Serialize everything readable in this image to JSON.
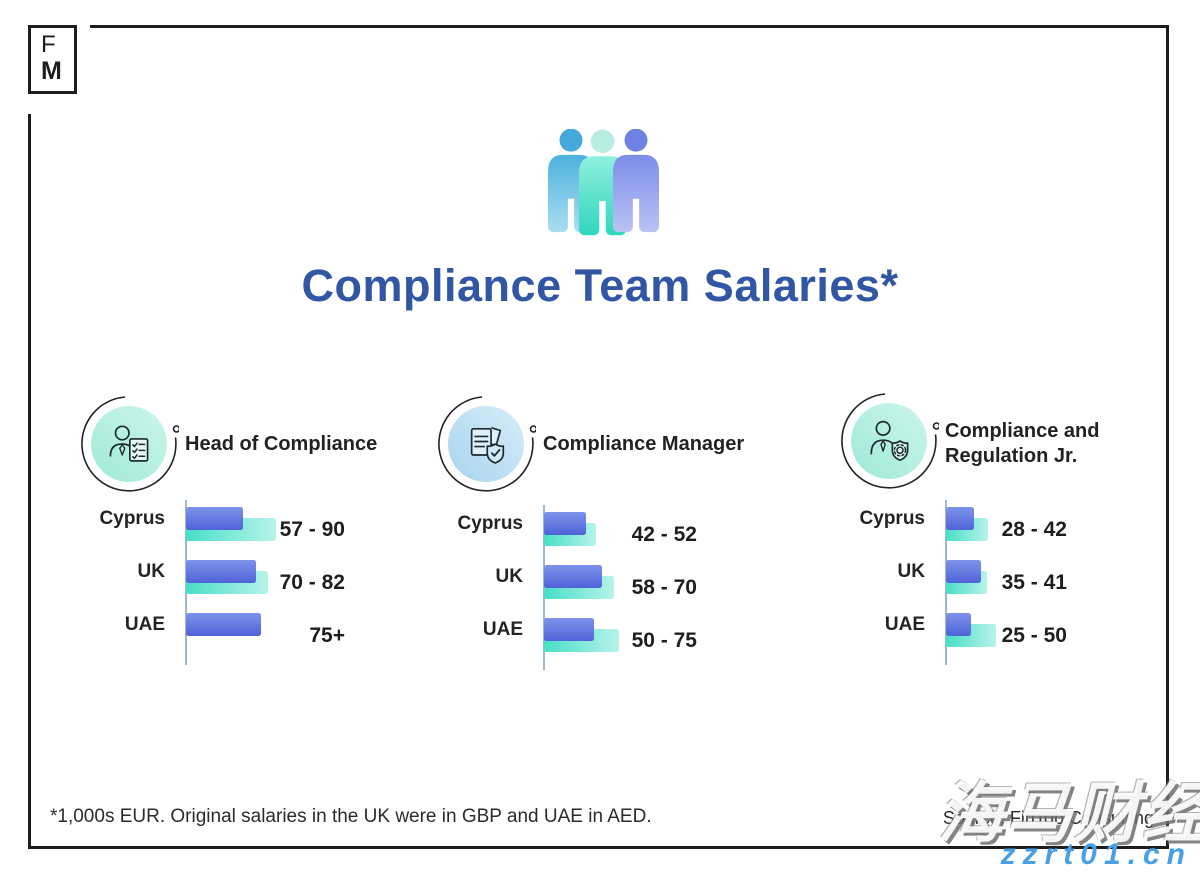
{
  "logo": {
    "top": "F",
    "bottom": "M"
  },
  "header": {
    "title": "Compliance Team Salaries*",
    "icon": "people-group-icon"
  },
  "sections": [
    {
      "icon": "person-checklist-icon",
      "label_lines": [
        "Head of Compliance"
      ]
    },
    {
      "icon": "documents-shield-icon",
      "label_lines": [
        "Compliance Manager"
      ]
    },
    {
      "icon": "person-shield-gear-icon",
      "label_lines": [
        "Compliance and",
        "Regulation Jr."
      ]
    }
  ],
  "chart_data": [
    {
      "type": "bar",
      "orientation": "horizontal",
      "title": "Head of Compliance",
      "categories": [
        "Cyprus",
        "UK",
        "UAE"
      ],
      "series": [
        {
          "name": "salary_min",
          "values": [
            57,
            70,
            75
          ]
        },
        {
          "name": "salary_max",
          "values": [
            90,
            82,
            null
          ]
        }
      ],
      "range_labels": [
        "57 - 90",
        "70 - 82",
        "75+"
      ],
      "unit": "1,000s EUR",
      "xlim": [
        0,
        100
      ],
      "grid": false,
      "legend": false
    },
    {
      "type": "bar",
      "orientation": "horizontal",
      "title": "Compliance Manager",
      "categories": [
        "Cyprus",
        "UK",
        "UAE"
      ],
      "series": [
        {
          "name": "salary_min",
          "values": [
            42,
            58,
            50
          ]
        },
        {
          "name": "salary_max",
          "values": [
            52,
            70,
            75
          ]
        }
      ],
      "range_labels": [
        "42 - 52",
        "58 - 70",
        "50 - 75"
      ],
      "unit": "1,000s EUR",
      "xlim": [
        0,
        100
      ],
      "grid": false,
      "legend": false
    },
    {
      "type": "bar",
      "orientation": "horizontal",
      "title": "Compliance and Regulation Jr.",
      "categories": [
        "Cyprus",
        "UK",
        "UAE"
      ],
      "series": [
        {
          "name": "salary_min",
          "values": [
            28,
            35,
            25
          ]
        },
        {
          "name": "salary_max",
          "values": [
            42,
            41,
            50
          ]
        }
      ],
      "range_labels": [
        "28 - 42",
        "35 - 41",
        "25 - 50"
      ],
      "unit": "1,000s EUR",
      "xlim": [
        0,
        100
      ],
      "grid": false,
      "legend": false
    }
  ],
  "footer": {
    "note": "*1,000s EUR. Original salaries in the UK were in GBP and UAE in AED.",
    "source": "Source: FinTop Consulting"
  },
  "watermark": {
    "text_cjk": "海马财经",
    "text_url": "zzrt01.cn"
  },
  "colors": {
    "title": "#3156a3",
    "frame": "#1d1d1d",
    "axis_line": "#9cb8ce",
    "text_dark": "#232323",
    "bar_min_gradient": [
      "#7e93eb",
      "#5063d8"
    ],
    "bar_max_gradient": [
      "#47dfc8",
      "#b7f3e9"
    ],
    "badge_mint": [
      "#ccf6ec",
      "#9fe9d6"
    ],
    "badge_blue": [
      "#d8edf9",
      "#a6d4ee"
    ],
    "person_blue": "#45a9dc",
    "person_mint": "#2fd7bc",
    "person_periwinkle": "#6f82e4",
    "watermark_url_color": "#4aa0e6"
  }
}
